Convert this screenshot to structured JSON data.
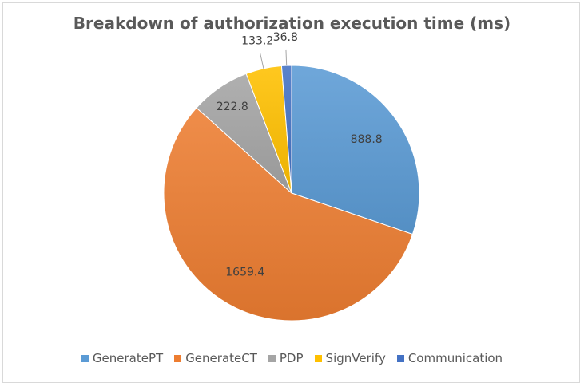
{
  "chart_data": {
    "type": "pie",
    "title": "Breakdown of authorization execution time (ms)",
    "categories": [
      "GeneratePT",
      "GenerateCT",
      "PDP",
      "SignVerify",
      "Communication"
    ],
    "values": [
      888.8,
      1659.4,
      222.8,
      133.2,
      36.8
    ],
    "data_labels": [
      "888.8",
      "1659.4",
      "222.8",
      "133.2",
      "36.8"
    ],
    "colors": [
      "#5b9bd5",
      "#ed7d31",
      "#a5a5a5",
      "#ffc000",
      "#4472c4"
    ],
    "start_angle_deg": 0,
    "direction": "clockwise",
    "legend_position": "bottom"
  }
}
